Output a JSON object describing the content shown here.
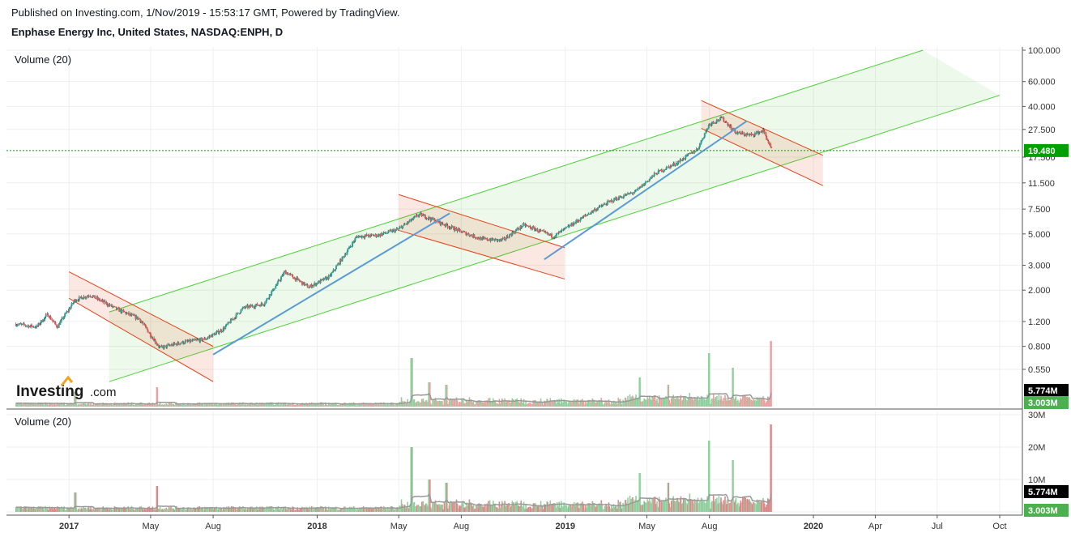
{
  "header": {
    "published": "Published on Investing.com, 1/Nov/2019 - 15:53:17 GMT, Powered by TradingView.",
    "instrument": "Enphase Energy Inc, United States, NASDAQ:ENPH, D"
  },
  "panes": {
    "price_label": "Volume (20)",
    "volume_label": "Volume (20)"
  },
  "logo": {
    "brand": "Investing",
    "suffix": ".com"
  },
  "colors": {
    "up": "#26a69a",
    "down": "#ef5350",
    "channel_green": "#4cd137",
    "channel_red": "#e84118",
    "trend_blue": "#5b9bd5",
    "last_price": "#00a000"
  },
  "chart_data": [
    {
      "type": "candlestick",
      "scale": "log",
      "y_ticks": [
        "100.000",
        "60.000",
        "40.000",
        "27.500",
        "17.500",
        "11.500",
        "7.500",
        "5.000",
        "3.000",
        "2.000",
        "1.200",
        "0.800",
        "0.550"
      ],
      "y_tick_values": [
        100,
        60,
        40,
        27.5,
        17.5,
        11.5,
        7.5,
        5,
        3,
        2,
        1.2,
        0.8,
        0.55
      ],
      "x_ticks": [
        "2017",
        "May",
        "Aug",
        "2018",
        "May",
        "Aug",
        "2019",
        "May",
        "Aug",
        "2020",
        "Apr",
        "Jul",
        "Oct"
      ],
      "x_tick_bold": [
        true,
        false,
        false,
        true,
        false,
        false,
        true,
        false,
        false,
        true,
        false,
        false,
        false
      ],
      "x_tick_dates": [
        "2017-01-01",
        "2017-05-01",
        "2017-08-01",
        "2018-01-01",
        "2018-05-01",
        "2018-08-01",
        "2019-01-01",
        "2019-05-01",
        "2019-08-01",
        "2020-01-01",
        "2020-04-01",
        "2020-07-01",
        "2020-10-01"
      ],
      "last_price": "19.480",
      "last_price_value": 19.48,
      "volume_overlay_labels": [
        "5.774M",
        "3.003M"
      ],
      "price_path": [
        {
          "x": "2016-10-15",
          "y": 1.15
        },
        {
          "x": "2016-11-15",
          "y": 1.1
        },
        {
          "x": "2016-12-01",
          "y": 1.35
        },
        {
          "x": "2016-12-15",
          "y": 1.1
        },
        {
          "x": "2017-01-10",
          "y": 1.7
        },
        {
          "x": "2017-02-01",
          "y": 1.85
        },
        {
          "x": "2017-03-15",
          "y": 1.45
        },
        {
          "x": "2017-04-15",
          "y": 1.25
        },
        {
          "x": "2017-05-15",
          "y": 0.78
        },
        {
          "x": "2017-06-15",
          "y": 0.85
        },
        {
          "x": "2017-07-20",
          "y": 0.9
        },
        {
          "x": "2017-08-15",
          "y": 1.05
        },
        {
          "x": "2017-09-15",
          "y": 1.5
        },
        {
          "x": "2017-10-15",
          "y": 1.6
        },
        {
          "x": "2017-11-15",
          "y": 2.7
        },
        {
          "x": "2017-12-20",
          "y": 2.1
        },
        {
          "x": "2018-01-20",
          "y": 2.5
        },
        {
          "x": "2018-03-01",
          "y": 4.8
        },
        {
          "x": "2018-04-01",
          "y": 4.9
        },
        {
          "x": "2018-05-01",
          "y": 5.4
        },
        {
          "x": "2018-06-01",
          "y": 6.9
        },
        {
          "x": "2018-07-01",
          "y": 6.0
        },
        {
          "x": "2018-08-01",
          "y": 5.2
        },
        {
          "x": "2018-09-01",
          "y": 4.6
        },
        {
          "x": "2018-10-01",
          "y": 4.5
        },
        {
          "x": "2018-11-01",
          "y": 5.8
        },
        {
          "x": "2018-12-15",
          "y": 4.8
        },
        {
          "x": "2019-01-15",
          "y": 6.0
        },
        {
          "x": "2019-02-15",
          "y": 7.5
        },
        {
          "x": "2019-03-15",
          "y": 8.8
        },
        {
          "x": "2019-04-15",
          "y": 10.0
        },
        {
          "x": "2019-05-15",
          "y": 13.5
        },
        {
          "x": "2019-06-15",
          "y": 16.0
        },
        {
          "x": "2019-07-15",
          "y": 20.0
        },
        {
          "x": "2019-08-01",
          "y": 30.0
        },
        {
          "x": "2019-08-20",
          "y": 33.0
        },
        {
          "x": "2019-09-10",
          "y": 26.0
        },
        {
          "x": "2019-10-01",
          "y": 25.0
        },
        {
          "x": "2019-10-20",
          "y": 27.0
        },
        {
          "x": "2019-11-01",
          "y": 19.48
        }
      ],
      "channels": [
        {
          "kind": "green_up",
          "upper": [
            {
              "x": "2017-03-01",
              "y": 1.4
            },
            {
              "x": "2020-06-10",
              "y": 100
            }
          ],
          "lower": [
            {
              "x": "2017-03-01",
              "y": 0.45
            },
            {
              "x": "2020-10-01",
              "y": 48
            }
          ]
        },
        {
          "kind": "red_down",
          "upper": [
            {
              "x": "2017-01-01",
              "y": 2.7
            },
            {
              "x": "2017-08-01",
              "y": 0.8
            }
          ],
          "lower": [
            {
              "x": "2017-01-01",
              "y": 1.75
            },
            {
              "x": "2017-08-01",
              "y": 0.45
            }
          ]
        },
        {
          "kind": "red_down",
          "upper": [
            {
              "x": "2018-05-01",
              "y": 9.5
            },
            {
              "x": "2018-12-31",
              "y": 4.0
            }
          ],
          "lower": [
            {
              "x": "2018-05-01",
              "y": 5.3
            },
            {
              "x": "2018-12-31",
              "y": 2.4
            }
          ]
        },
        {
          "kind": "red_down",
          "upper": [
            {
              "x": "2019-07-20",
              "y": 44
            },
            {
              "x": "2020-01-15",
              "y": 18
            }
          ],
          "lower": [
            {
              "x": "2019-07-20",
              "y": 28
            },
            {
              "x": "2020-01-15",
              "y": 11
            }
          ]
        }
      ],
      "trendlines": [
        {
          "from": {
            "x": "2017-08-01",
            "y": 0.7
          },
          "to": {
            "x": "2018-07-15",
            "y": 7.0
          }
        },
        {
          "from": {
            "x": "2018-12-01",
            "y": 3.3
          },
          "to": {
            "x": "2019-09-25",
            "y": 31.5
          }
        }
      ]
    },
    {
      "type": "bar",
      "title": "Volume (20)",
      "y_ticks": [
        "30M",
        "20M",
        "10M",
        "0"
      ],
      "y_tick_values": [
        30,
        20,
        10,
        0
      ],
      "units": "M",
      "ylim": [
        0,
        30
      ],
      "overlay_labels": [
        "5.774M",
        "3.003M"
      ],
      "ma_latest": 5.774,
      "latest": 3.003,
      "spikes": [
        {
          "x": "2017-01-10",
          "v": 6
        },
        {
          "x": "2017-05-10",
          "v": 8
        },
        {
          "x": "2018-05-20",
          "v": 20
        },
        {
          "x": "2018-06-15",
          "v": 10
        },
        {
          "x": "2018-07-10",
          "v": 9
        },
        {
          "x": "2019-04-20",
          "v": 12
        },
        {
          "x": "2019-06-01",
          "v": 9
        },
        {
          "x": "2019-08-01",
          "v": 22
        },
        {
          "x": "2019-09-05",
          "v": 16
        },
        {
          "x": "2019-10-30",
          "v": 27
        }
      ]
    }
  ]
}
